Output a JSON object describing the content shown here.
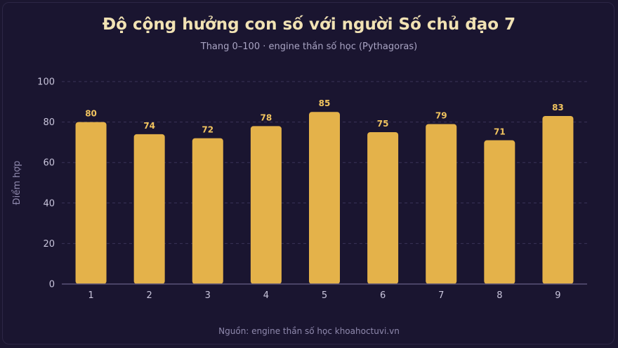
{
  "title": "Độ cộng hưởng con số với người Số chủ đạo 7",
  "subtitle": "Thang 0–100 · engine thần số học (Pythagoras)",
  "source": "Nguồn: engine thần số học khoahoctuvi.vn",
  "colors": {
    "background": "#1a1530",
    "bar": "#e4b24a",
    "value_label": "#f1c45f",
    "title": "#f1e2b4",
    "grid": "#3a3458",
    "axis": "#5a5378"
  },
  "chart_data": {
    "type": "bar",
    "categories": [
      "1",
      "2",
      "3",
      "4",
      "5",
      "6",
      "7",
      "8",
      "9"
    ],
    "values": [
      80,
      74,
      72,
      78,
      85,
      75,
      79,
      71,
      83
    ],
    "ylabel": "Điểm hợp",
    "xlabel": "",
    "ylim": [
      0,
      100
    ],
    "yticks": [
      0,
      20,
      40,
      60,
      80,
      100
    ],
    "grid": true,
    "data_labels": true
  }
}
